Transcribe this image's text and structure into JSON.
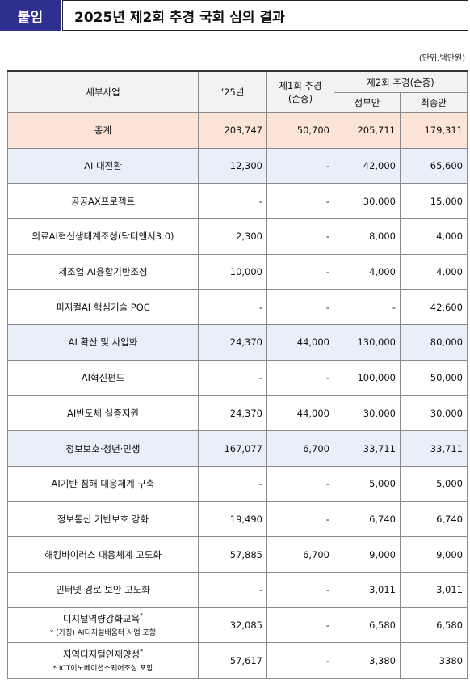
{
  "header": {
    "tag": "붙임",
    "title": "2025년 제2회 추경 국회 심의 결과",
    "unit": "(단위:백만원)"
  },
  "table": {
    "columns": [
      "세부사업",
      "’25년",
      [
        "제1회 추경",
        "(순증)"
      ],
      "제2회 추경(순증)"
    ],
    "subcolumns": [
      "정부안",
      "최종안"
    ],
    "rows": [
      {
        "kind": "total",
        "name": "총계",
        "cells": [
          "203,747",
          "50,700",
          "205,711",
          "179,311"
        ]
      },
      {
        "kind": "group",
        "name": "AI 대전환",
        "cells": [
          "12,300",
          "-",
          "42,000",
          "65,600"
        ]
      },
      {
        "kind": "item",
        "name": "공공AX프로젝트",
        "cells": [
          "-",
          "-",
          "30,000",
          "15,000"
        ]
      },
      {
        "kind": "item",
        "name": "의료AI혁신생태계조성(닥터앤서3.0)",
        "cells": [
          "2,300",
          "-",
          "8,000",
          "4,000"
        ]
      },
      {
        "kind": "item",
        "name": "제조업 AI융합기반조성",
        "cells": [
          "10,000",
          "-",
          "4,000",
          "4,000"
        ]
      },
      {
        "kind": "item",
        "name": "피지컬AI 핵심기술 POC",
        "cells": [
          "-",
          "-",
          "-",
          "42,600"
        ]
      },
      {
        "kind": "group",
        "name": "AI 확산 및 사업화",
        "cells": [
          "24,370",
          "44,000",
          "130,000",
          "80,000"
        ]
      },
      {
        "kind": "item",
        "name": "AI혁신펀드",
        "cells": [
          "-",
          "-",
          "100,000",
          "50,000"
        ]
      },
      {
        "kind": "item",
        "name": "AI반도체 실증지원",
        "cells": [
          "24,370",
          "44,000",
          "30,000",
          "30,000"
        ]
      },
      {
        "kind": "group",
        "name": "정보보호·청년·민생",
        "cells": [
          "167,077",
          "6,700",
          "33,711",
          "33,711"
        ]
      },
      {
        "kind": "item",
        "name": "AI기반 침해 대응체계 구축",
        "cells": [
          "-",
          "-",
          "5,000",
          "5,000"
        ]
      },
      {
        "kind": "item",
        "name": "정보통신 기반보호 강화",
        "cells": [
          "19,490",
          "-",
          "6,740",
          "6,740"
        ]
      },
      {
        "kind": "item",
        "name": "해킹바이러스 대응체계 고도화",
        "cells": [
          "57,885",
          "6,700",
          "9,000",
          "9,000"
        ]
      },
      {
        "kind": "item",
        "name": "인터넷 경로 보안 고도화",
        "cells": [
          "-",
          "-",
          "3,011",
          "3,011"
        ]
      },
      {
        "kind": "item",
        "name": "디지털역량강화교육",
        "mark": "*",
        "note": "* (가칭) AI디지털배움터 사업 포함",
        "cells": [
          "32,085",
          "-",
          "6,580",
          "6,580"
        ]
      },
      {
        "kind": "item",
        "name": "지역디지털인재양성",
        "mark": "*",
        "note": "* ICT이노베이션스퀘어조성 포함",
        "cells": [
          "57,617",
          "-",
          "3,380",
          "3380"
        ]
      }
    ]
  }
}
